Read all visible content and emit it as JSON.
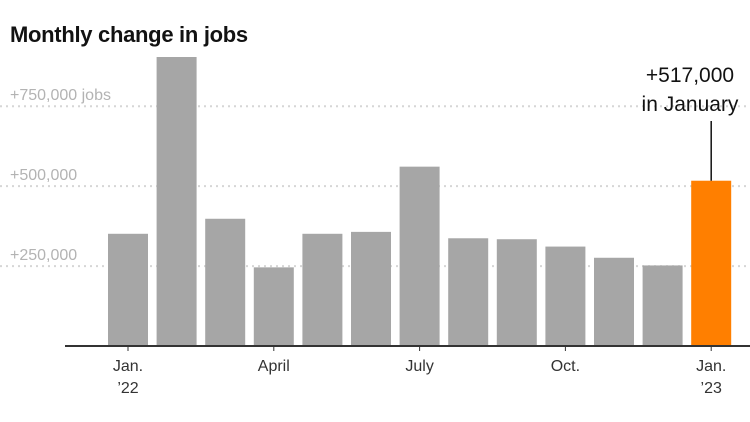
{
  "chart_data": {
    "type": "bar",
    "title": "Monthly change in jobs",
    "categories": [
      "Jan. 2022",
      "Feb. 2022",
      "Mar. 2022",
      "April 2022",
      "May 2022",
      "June 2022",
      "July 2022",
      "Aug. 2022",
      "Sep. 2022",
      "Oct. 2022",
      "Nov. 2022",
      "Dec. 2022",
      "Jan. 2023"
    ],
    "values": [
      351000,
      904000,
      398000,
      246000,
      351000,
      357000,
      561000,
      337000,
      334000,
      311000,
      276000,
      252000,
      517000
    ],
    "ylim": [
      0,
      904000
    ],
    "y_ticks": [
      {
        "value": 250000,
        "label": "+250,000"
      },
      {
        "value": 500000,
        "label": "+500,000"
      },
      {
        "value": 750000,
        "label": "+750,000 jobs"
      }
    ],
    "x_ticks": [
      {
        "index": 0,
        "line1": "Jan.",
        "line2": "’22"
      },
      {
        "index": 3,
        "line1": "April",
        "line2": ""
      },
      {
        "index": 6,
        "line1": "July",
        "line2": ""
      },
      {
        "index": 9,
        "line1": "Oct.",
        "line2": ""
      },
      {
        "index": 12,
        "line1": "Jan.",
        "line2": "’23"
      }
    ],
    "highlight_index": 12,
    "annotation": {
      "index": 12,
      "line1": "+517,000",
      "line2": "in January"
    },
    "grid": true,
    "colors": {
      "bar": "#a6a6a6",
      "highlight": "#ff7f00",
      "gridline": "#d6d6d6",
      "baseline": "#333333"
    }
  }
}
